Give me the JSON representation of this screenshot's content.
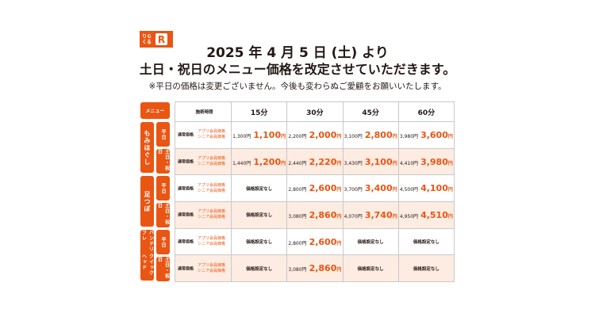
{
  "logo": {
    "text": "りらくる",
    "letter": "R"
  },
  "header": {
    "line1": "2025 年 4 月 5 日 (土) より",
    "line2": "土日・祝日のメニュー価格を改定させていただきます。",
    "note": "※平日の価格は変更ございません。今後も変わらぬご愛顧をお願いいたします。"
  },
  "table": {
    "menu_label": "メニュー",
    "time_label": "施術時間",
    "columns": [
      "15分",
      "30分",
      "45分",
      "60分"
    ],
    "regular_label": "通常価格",
    "member_label_1": "アプリ会員価格",
    "member_label_2": "シニア会員価格",
    "none": "価格設定なし",
    "yen": "円",
    "weekday": "平日",
    "weekend": "土日・祝日",
    "menus": [
      {
        "name": "もみほぐし",
        "rows": [
          {
            "type": "weekday",
            "cells": [
              [
                "1,300",
                "1,100"
              ],
              [
                "2,200",
                "2,000"
              ],
              [
                "3,100",
                "2,800"
              ],
              [
                "3,980",
                "3,600"
              ]
            ]
          },
          {
            "type": "weekend",
            "cells": [
              [
                "1,440",
                "1,200"
              ],
              [
                "2,440",
                "2,220"
              ],
              [
                "3,430",
                "3,100"
              ],
              [
                "4,410",
                "3,980"
              ]
            ]
          }
        ]
      },
      {
        "name": "足つぼ",
        "rows": [
          {
            "type": "weekday",
            "cells": [
              null,
              [
                "2,800",
                "2,600"
              ],
              [
                "3,700",
                "3,400"
              ],
              [
                "4,500",
                "4,100"
              ]
            ]
          },
          {
            "type": "weekend",
            "cells": [
              null,
              [
                "3,080",
                "2,860"
              ],
              [
                "4,070",
                "3,740"
              ],
              [
                "4,950",
                "4,510"
              ]
            ]
          }
        ]
      },
      {
        "name": "ハンドリフレ クイックヘッド",
        "rows": [
          {
            "type": "weekday",
            "cells": [
              null,
              [
                "2,800",
                "2,600"
              ],
              null,
              null
            ]
          },
          {
            "type": "weekend",
            "cells": [
              null,
              [
                "3,080",
                "2,860"
              ],
              null,
              null
            ]
          }
        ]
      }
    ]
  },
  "colors": {
    "accent": "#e95513",
    "weekend_bg": "#fdece2"
  }
}
